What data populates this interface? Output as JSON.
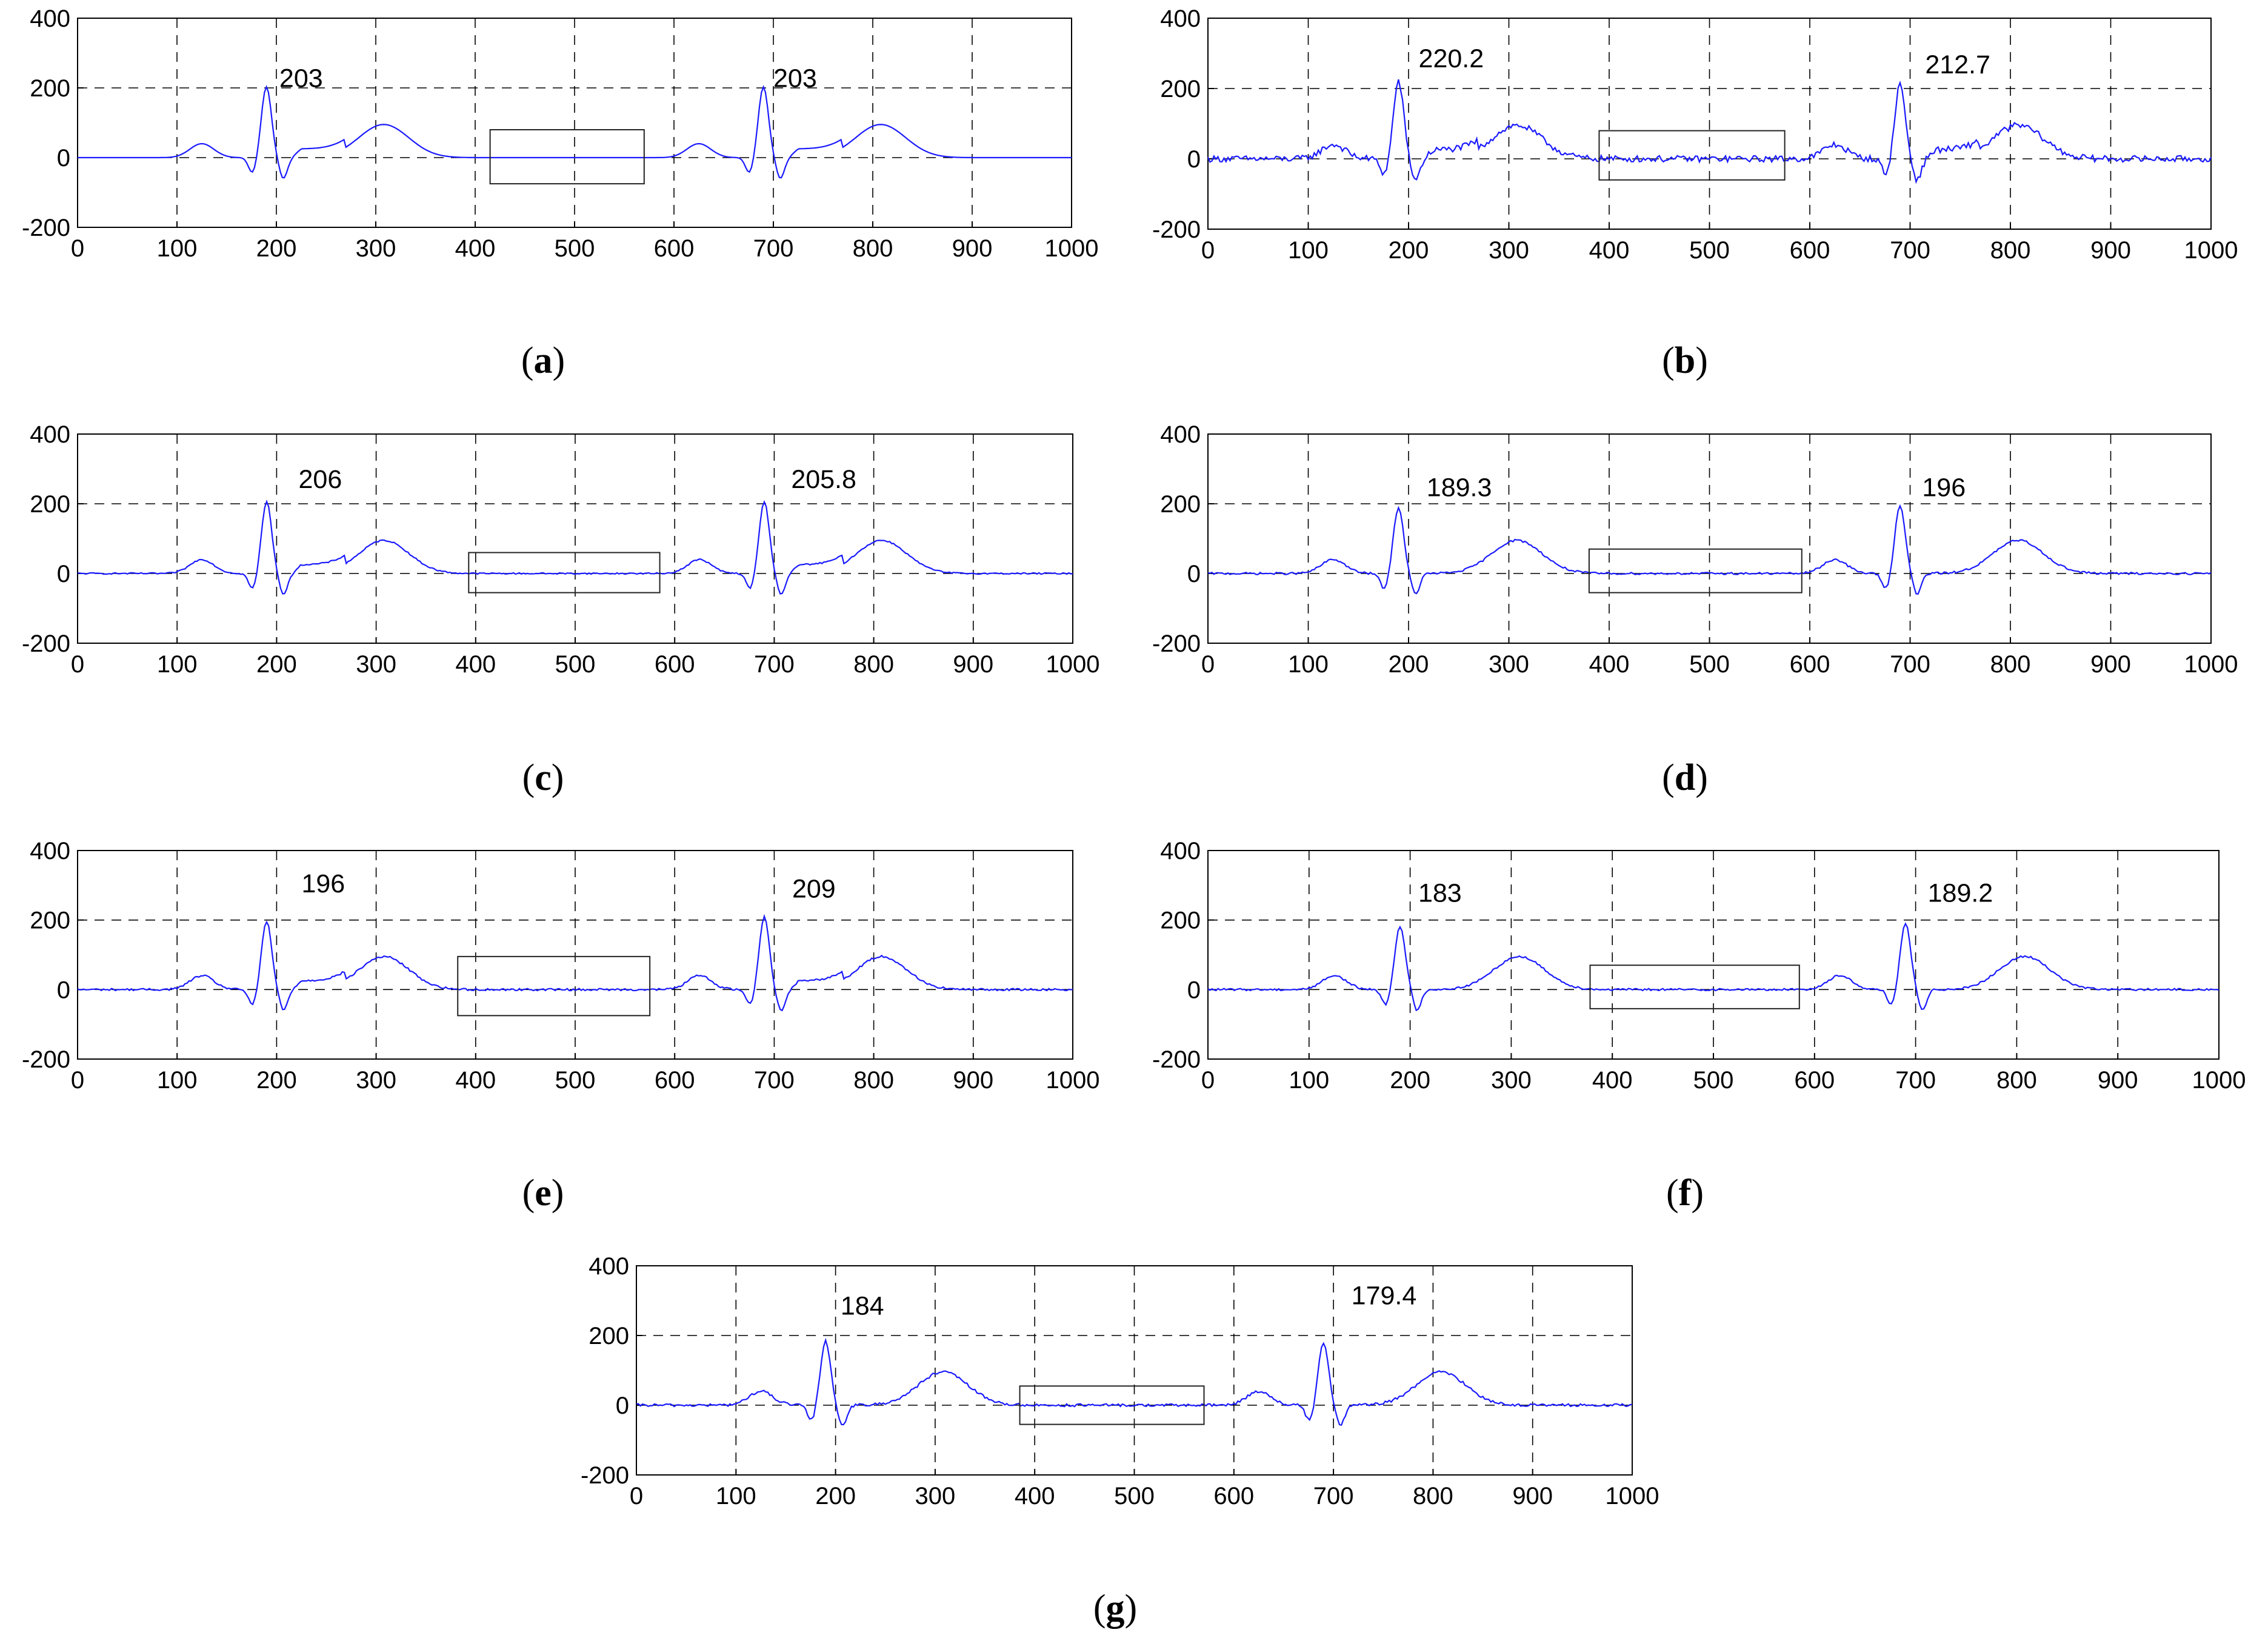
{
  "figure": {
    "colors": {
      "signal": "#1a1aff",
      "axis": "#000000",
      "grid": "#000000",
      "background": "#ffffff"
    }
  },
  "chart_data": [
    {
      "type": "line",
      "panel": "a",
      "caption": "(a)",
      "xlim": [
        0,
        1000
      ],
      "ylim": [
        -200,
        400
      ],
      "xticks": [
        0,
        100,
        200,
        300,
        400,
        500,
        600,
        700,
        800,
        900,
        1000
      ],
      "yticks": [
        -200,
        0,
        200,
        400
      ],
      "grid": true,
      "noise": 0,
      "has_baseline_step": true,
      "peak_labels": [
        {
          "x": 203,
          "y": 203,
          "text": "203"
        },
        {
          "x": 700,
          "y": 203,
          "text": "203"
        }
      ],
      "peaks": [
        203,
        203
      ],
      "box": {
        "x0": 415,
        "x1": 570,
        "y0": -75,
        "y1": 80
      }
    },
    {
      "type": "line",
      "panel": "b",
      "caption": "(b)",
      "xlim": [
        0,
        1000
      ],
      "ylim": [
        -200,
        400
      ],
      "xticks": [
        0,
        100,
        200,
        300,
        400,
        500,
        600,
        700,
        800,
        900,
        1000
      ],
      "yticks": [
        -200,
        0,
        200,
        400
      ],
      "grid": true,
      "noise": 9,
      "has_baseline_step": true,
      "peak_labels": [
        {
          "x": 210,
          "y": 260,
          "text": "220.2"
        },
        {
          "x": 715,
          "y": 243,
          "text": "212.7"
        }
      ],
      "peaks": [
        220.2,
        212.7
      ],
      "box": {
        "x0": 390,
        "x1": 575,
        "y0": -60,
        "y1": 80
      }
    },
    {
      "type": "line",
      "panel": "c",
      "caption": "(c)",
      "xlim": [
        0,
        1000
      ],
      "ylim": [
        -200,
        400
      ],
      "xticks": [
        0,
        100,
        200,
        300,
        400,
        500,
        600,
        700,
        800,
        900,
        1000
      ],
      "yticks": [
        -200,
        0,
        200,
        400
      ],
      "grid": true,
      "noise": 2,
      "has_baseline_step": true,
      "peak_labels": [
        {
          "x": 222,
          "y": 245,
          "text": "206"
        },
        {
          "x": 717,
          "y": 245,
          "text": "205.8"
        }
      ],
      "peaks": [
        206,
        205.8
      ],
      "box": {
        "x0": 393,
        "x1": 585,
        "y0": -55,
        "y1": 60
      }
    },
    {
      "type": "line",
      "panel": "d",
      "caption": "(d)",
      "xlim": [
        0,
        1000
      ],
      "ylim": [
        -200,
        400
      ],
      "xticks": [
        0,
        100,
        200,
        300,
        400,
        500,
        600,
        700,
        800,
        900,
        1000
      ],
      "yticks": [
        -200,
        0,
        200,
        400
      ],
      "grid": true,
      "noise": 3,
      "has_baseline_step": false,
      "peak_labels": [
        {
          "x": 218,
          "y": 222,
          "text": "189.3"
        },
        {
          "x": 712,
          "y": 222,
          "text": "196"
        }
      ],
      "peaks": [
        189.3,
        196
      ],
      "box": {
        "x0": 380,
        "x1": 592,
        "y0": -55,
        "y1": 70
      }
    },
    {
      "type": "line",
      "panel": "e",
      "caption": "(e)",
      "xlim": [
        0,
        1000
      ],
      "ylim": [
        -200,
        400
      ],
      "xticks": [
        0,
        100,
        200,
        300,
        400,
        500,
        600,
        700,
        800,
        900,
        1000
      ],
      "yticks": [
        -200,
        0,
        200,
        400
      ],
      "grid": true,
      "noise": 3,
      "has_baseline_step": true,
      "peak_labels": [
        {
          "x": 225,
          "y": 280,
          "text": "196"
        },
        {
          "x": 718,
          "y": 265,
          "text": "209"
        }
      ],
      "peaks": [
        196,
        209
      ],
      "box": {
        "x0": 382,
        "x1": 575,
        "y0": -75,
        "y1": 95
      }
    },
    {
      "type": "line",
      "panel": "f",
      "caption": "(f)",
      "xlim": [
        0,
        1000
      ],
      "ylim": [
        -200,
        400
      ],
      "xticks": [
        0,
        100,
        200,
        300,
        400,
        500,
        600,
        700,
        800,
        900,
        1000
      ],
      "yticks": [
        -200,
        0,
        200,
        400
      ],
      "grid": true,
      "noise": 3,
      "has_baseline_step": false,
      "peak_labels": [
        {
          "x": 208,
          "y": 253,
          "text": "183"
        },
        {
          "x": 712,
          "y": 253,
          "text": "189.2"
        }
      ],
      "peaks": [
        183,
        189.2
      ],
      "box": {
        "x0": 378,
        "x1": 585,
        "y0": -55,
        "y1": 70
      }
    },
    {
      "type": "line",
      "panel": "g",
      "caption": "(g)",
      "xlim": [
        0,
        1000
      ],
      "ylim": [
        -200,
        400
      ],
      "xticks": [
        0,
        100,
        200,
        300,
        400,
        500,
        600,
        700,
        800,
        900,
        1000
      ],
      "yticks": [
        -200,
        0,
        200,
        400
      ],
      "grid": true,
      "noise": 4,
      "has_baseline_step": false,
      "peak_labels": [
        {
          "x": 205,
          "y": 260,
          "text": "184"
        },
        {
          "x": 718,
          "y": 290,
          "text": "179.4"
        }
      ],
      "peaks": [
        184,
        179.4
      ],
      "box": {
        "x0": 385,
        "x1": 570,
        "y0": -55,
        "y1": 55
      }
    }
  ]
}
